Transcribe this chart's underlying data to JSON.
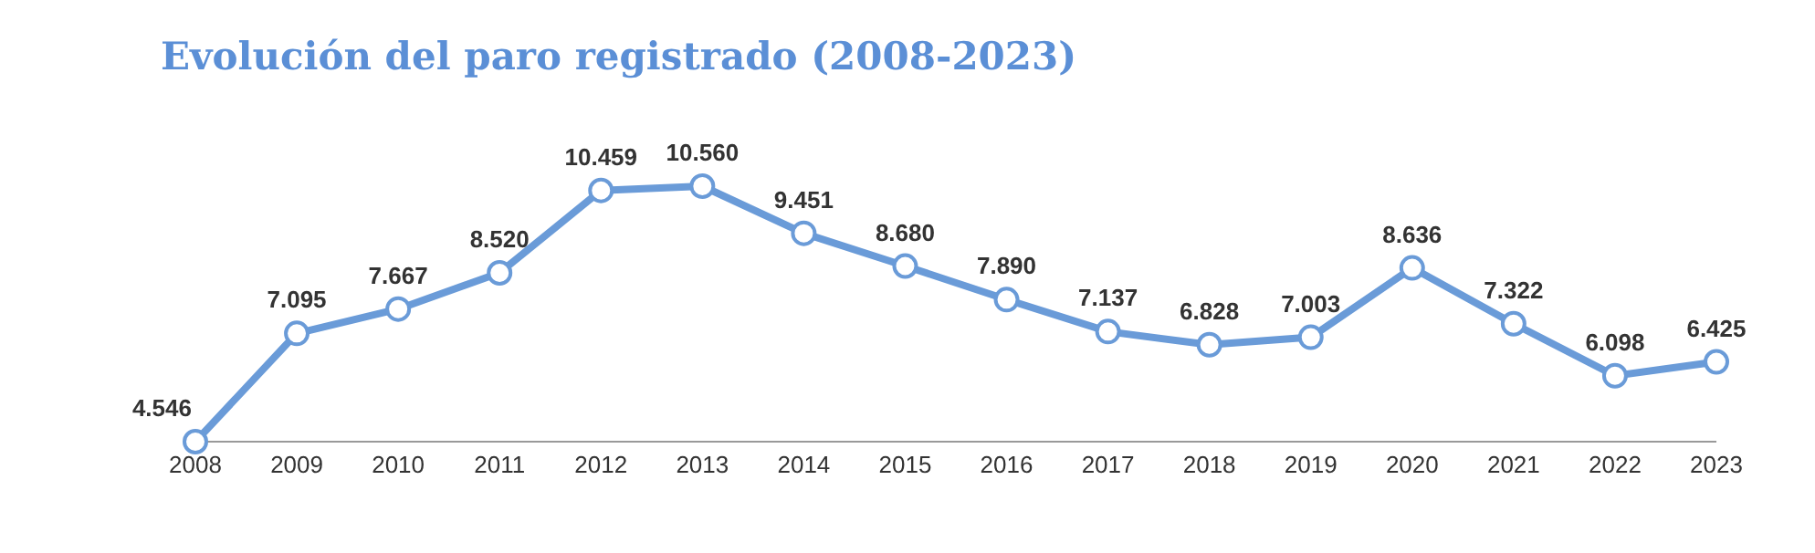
{
  "chart_data": {
    "type": "line",
    "title": "Evolución del paro registrado (2008-2023)",
    "categories": [
      "2008",
      "2009",
      "2010",
      "2011",
      "2012",
      "2013",
      "2014",
      "2015",
      "2016",
      "2017",
      "2018",
      "2019",
      "2020",
      "2021",
      "2022",
      "2023"
    ],
    "series": [
      {
        "color": "#6a9bd8",
        "values": [
          4546,
          7095,
          7667,
          8520,
          10459,
          10560,
          9451,
          8680,
          7890,
          7137,
          6828,
          7003,
          8636,
          7322,
          6098,
          6425
        ],
        "value_labels": [
          "4.546",
          "7.095",
          "7.667",
          "8.520",
          "10.459",
          "10.560",
          "9.451",
          "8.680",
          "7.890",
          "7.137",
          "6.828",
          "7.003",
          "8.636",
          "7.322",
          "6.098",
          "6.425"
        ]
      }
    ],
    "marker": "circle",
    "grid": false
  }
}
